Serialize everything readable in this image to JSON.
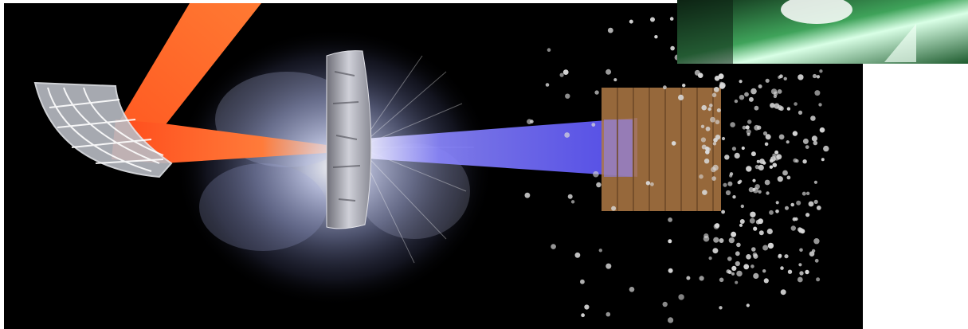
{
  "scene": {
    "background_color": "#000000",
    "laser_color": "#ff6a2a",
    "beam_color": "#6f6cff",
    "cloud_color": "#cfd6f2",
    "target_block_color": "#b07a45",
    "particle_color": "#d9d9d9",
    "inset_color": "#2f7a3a"
  },
  "elements": {
    "parabolic_mirror": "parabolic-mirror",
    "laser_beam": "laser-beam",
    "plasma_cloud": "plasma-cloud",
    "target_foil": "target-foil",
    "particle_beam": "particle-beam",
    "converter_block": "converter-block",
    "particles": "particles",
    "camera_inset": "camera-inset"
  }
}
